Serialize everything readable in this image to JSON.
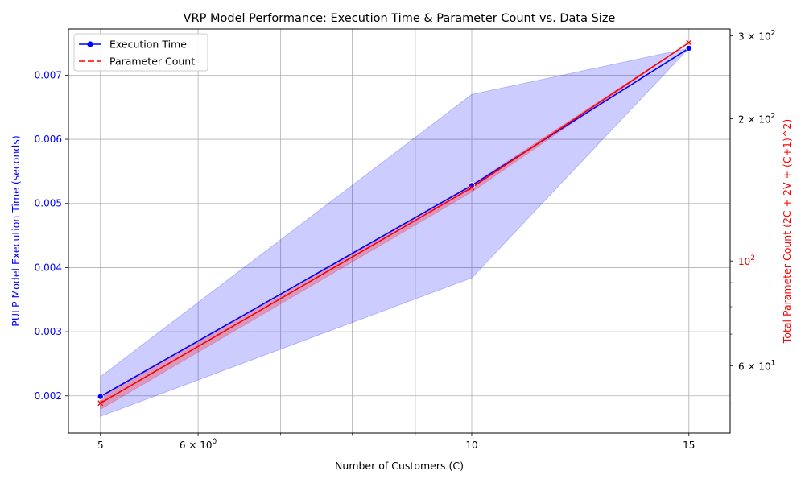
{
  "chart_data": {
    "type": "line",
    "title": "VRP Model Performance: Execution Time & Parameter Count vs. Data Size",
    "xlabel": "Number of Customers (C)",
    "ylabel_left": "PULP Model Execution Time (seconds)",
    "ylabel_right": "Total Parameter Count (2C + 2V + (C+1)^2)",
    "x_scale": "log",
    "xlim": [
      4.71,
      16.2
    ],
    "x_ticks": [
      {
        "value": 5,
        "base": "5",
        "exp": ""
      },
      {
        "value": 6,
        "base": "6 × 10",
        "exp": "0"
      },
      {
        "value": 10,
        "base": "10",
        "exp": ""
      },
      {
        "value": 15,
        "base": "15",
        "exp": ""
      }
    ],
    "x_minor_ticks": [
      7,
      8,
      9
    ],
    "left_axis": {
      "scale": "linear",
      "ylim": [
        0.00142,
        0.00772
      ],
      "ticks": [
        "0.002",
        "0.003",
        "0.004",
        "0.005",
        "0.006",
        "0.007"
      ],
      "tick_values": [
        0.002,
        0.003,
        0.004,
        0.005,
        0.006,
        0.007
      ],
      "color": "#0000ff"
    },
    "right_axis": {
      "scale": "log",
      "ylim": [
        43.2,
        310
      ],
      "ticks": [
        {
          "value": 60,
          "base": "6 × 10",
          "exp": "1"
        },
        {
          "value": 100,
          "base": "10",
          "exp": "2"
        },
        {
          "value": 200,
          "base": "2 × 10",
          "exp": "2"
        },
        {
          "value": 300,
          "base": "3 × 10",
          "exp": "2"
        }
      ],
      "minor_ticks": [
        50,
        70,
        80,
        90
      ],
      "color": "#ff0000"
    },
    "series": [
      {
        "name": "Execution Time",
        "axis": "left",
        "color": "#0000ff",
        "marker": "circle",
        "x": [
          5,
          10,
          15
        ],
        "y": [
          0.00199,
          0.00528,
          0.00742
        ],
        "ci_upper": [
          0.0023,
          0.0067,
          0.00742
        ],
        "ci_lower": [
          0.00168,
          0.00384,
          0.00742
        ]
      },
      {
        "name": "Parameter Count",
        "axis": "right",
        "color": "#ff0000",
        "marker": "x",
        "dashed": true,
        "x": [
          5,
          10,
          15
        ],
        "y": [
          50,
          143,
          290
        ],
        "ci_upper": [
          51.5,
          145,
          290
        ],
        "ci_lower": [
          48.5,
          140,
          290
        ]
      }
    ],
    "grid": true,
    "legend_position": "top-left"
  }
}
